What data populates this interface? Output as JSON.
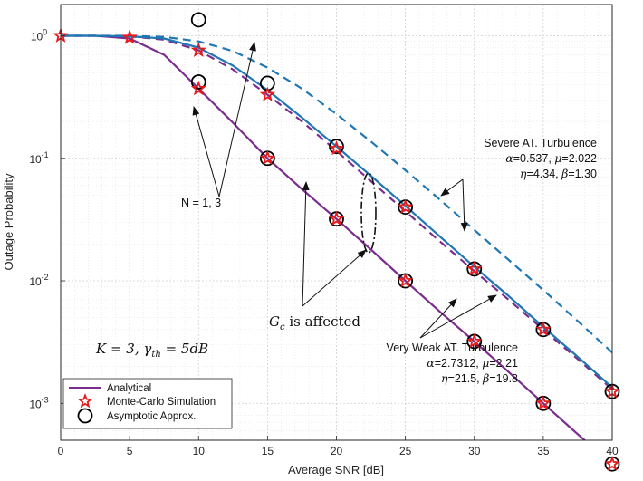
{
  "chart_data": {
    "type": "line",
    "xlabel": "Average SNR [dB]",
    "ylabel": "Outage Probability",
    "xlim": [
      0,
      40
    ],
    "ylim": [
      0.0005,
      1.8
    ],
    "yscale": "log",
    "grid": true,
    "x_ticks": [
      "0",
      "5",
      "10",
      "15",
      "20",
      "25",
      "30",
      "35",
      "40"
    ],
    "x_tick_values": [
      0,
      5,
      10,
      15,
      20,
      25,
      30,
      35,
      40
    ],
    "y_ticks": [
      {
        "base": "10",
        "exp": "0",
        "value": 1
      },
      {
        "base": "10",
        "exp": "-1",
        "value": 0.1
      },
      {
        "base": "10",
        "exp": "-2",
        "value": 0.01
      },
      {
        "base": "10",
        "exp": "-3",
        "value": 0.001
      }
    ],
    "colors": {
      "purple": "#7b2d8e",
      "blue": "#1f77b4",
      "red": "#e41a1c"
    },
    "series": [
      {
        "legend": "Analytical",
        "color": "#7b2d8e",
        "dash": "solid",
        "x": [
          0,
          2.5,
          5,
          7.5,
          10,
          12.5,
          15,
          17.5,
          20,
          22.5,
          25,
          27.5,
          30,
          32.5,
          35,
          37.5,
          40
        ],
        "y": [
          1,
          1,
          0.95,
          0.7,
          0.37,
          0.195,
          0.1,
          0.056,
          0.032,
          0.018,
          0.01,
          0.0056,
          0.0032,
          0.0018,
          0.001,
          0.00056,
          0.00032
        ]
      },
      {
        "color": "#7b2d8e",
        "dash": "dashed",
        "x": [
          0,
          2.5,
          5,
          7.5,
          10,
          12.5,
          15,
          17.5,
          20,
          22.5,
          25,
          27.5,
          30,
          32.5,
          35,
          37.5,
          40
        ],
        "y": [
          1,
          1,
          0.99,
          0.93,
          0.76,
          0.53,
          0.33,
          0.2,
          0.115,
          0.065,
          0.037,
          0.021,
          0.012,
          0.007,
          0.004,
          0.0023,
          0.0013
        ]
      },
      {
        "color": "#1f77b4",
        "dash": "solid",
        "x": [
          0,
          2.5,
          5,
          7.5,
          10,
          12.5,
          15,
          17.5,
          20,
          22.5,
          25,
          27.5,
          30,
          32.5,
          35,
          37.5,
          40
        ],
        "y": [
          1,
          1,
          0.99,
          0.95,
          0.8,
          0.57,
          0.36,
          0.215,
          0.125,
          0.072,
          0.041,
          0.023,
          0.013,
          0.0075,
          0.0042,
          0.0024,
          0.00135
        ]
      },
      {
        "color": "#1f77b4",
        "dash": "dashed",
        "x": [
          0,
          2.5,
          5,
          7.5,
          10,
          12.5,
          15,
          17.5,
          20,
          22.5,
          25,
          27.5,
          30,
          32.5,
          35,
          37.5,
          40
        ],
        "y": [
          1,
          1,
          1,
          0.98,
          0.9,
          0.75,
          0.55,
          0.37,
          0.23,
          0.137,
          0.08,
          0.046,
          0.026,
          0.0148,
          0.0084,
          0.0047,
          0.0026
        ]
      }
    ],
    "stars": {
      "legend": "Monte-Carlo Simulation",
      "color": "#e41a1c",
      "points": [
        [
          0,
          1
        ],
        [
          5,
          0.97
        ],
        [
          10,
          0.37
        ],
        [
          15,
          0.33
        ],
        [
          10,
          0.76
        ],
        [
          15,
          0.1
        ],
        [
          20,
          0.12
        ],
        [
          20,
          0.032
        ],
        [
          25,
          0.04
        ],
        [
          25,
          0.01
        ],
        [
          30,
          0.0125
        ],
        [
          30,
          0.0032
        ],
        [
          35,
          0.004
        ],
        [
          35,
          0.001
        ],
        [
          40,
          0.00125
        ],
        [
          40,
          0.00032
        ]
      ]
    },
    "circles": {
      "legend": "Asymptotic Approx.",
      "color": "#000000",
      "points": [
        [
          10,
          1.35
        ],
        [
          10,
          0.42
        ],
        [
          15,
          0.41
        ],
        [
          15,
          0.1
        ],
        [
          20,
          0.125
        ],
        [
          20,
          0.032
        ],
        [
          25,
          0.04
        ],
        [
          25,
          0.01
        ],
        [
          30,
          0.0125
        ],
        [
          30,
          0.0032
        ],
        [
          35,
          0.004
        ],
        [
          35,
          0.001
        ],
        [
          40,
          0.00125
        ],
        [
          40,
          0.00032
        ]
      ]
    },
    "legend_position": "bottom-left",
    "annotations": {
      "severe_title": "Severe AT. Turbulence",
      "severe_line1": "=0.537, ",
      "severe_line1b": "=2.022",
      "severe_line2": "=4.34, ",
      "severe_line2b": "=1.30",
      "weak_title": "Very Weak AT. Turbulence",
      "weak_line1": "=2.7312, ",
      "weak_line1b": "=2.21",
      "weak_line2": "=21.5, ",
      "weak_line2b": "=19.8",
      "n_label": "N = 1, 3",
      "gc_main": "G",
      "gc_sub": "c",
      "gc_rest": " is affected",
      "k_main": "K = 3, γ",
      "k_sub": "th",
      "k_rest": " = 5dB"
    }
  }
}
